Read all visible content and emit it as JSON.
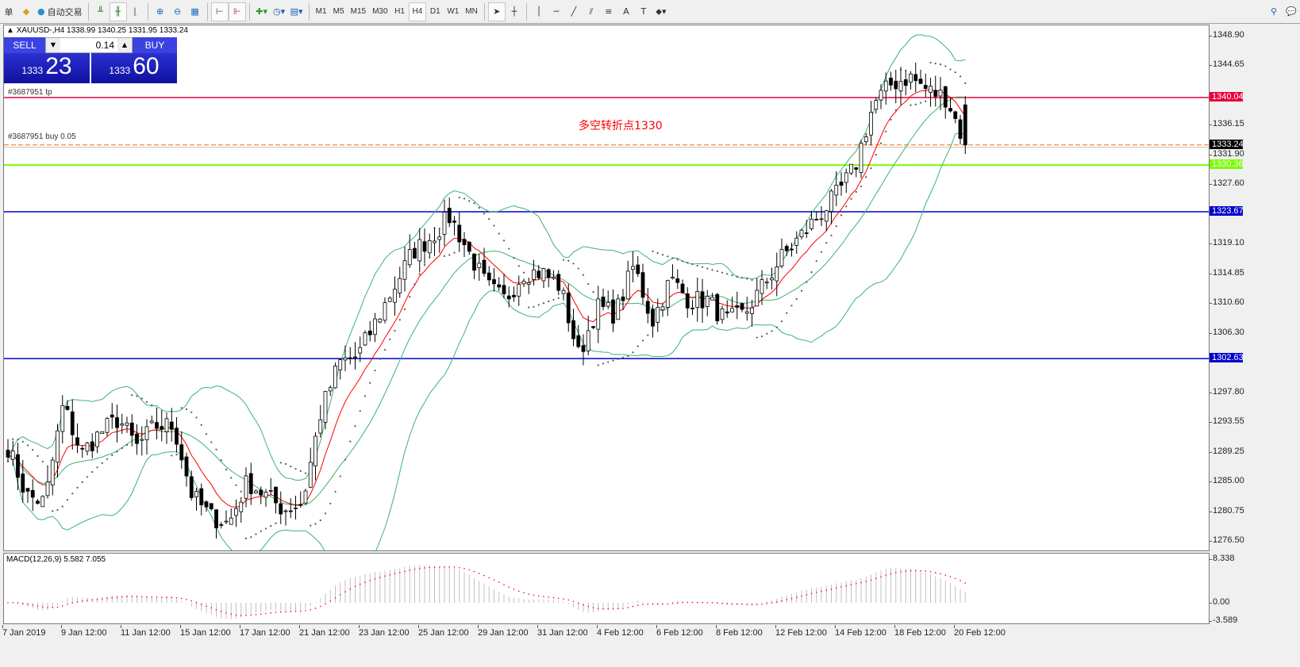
{
  "toolbar": {
    "left_partial": "单",
    "autotrade_label": "自动交易",
    "icons": [
      "expert-icon",
      "autotrade-icon",
      "bar-chart-icon",
      "candlestick-icon",
      "line-chart-icon",
      "zoom-in-icon",
      "zoom-out-icon",
      "tile-windows-icon",
      "chart-shift-icon",
      "autoscroll-icon",
      "indicators-icon",
      "periods-icon",
      "templates-icon",
      "cursor-icon",
      "crosshair-icon",
      "vertical-line-icon",
      "horizontal-line-icon",
      "trendline-icon",
      "equidistant-channel-icon",
      "fibonacci-icon",
      "text-icon",
      "text-label-icon",
      "arrows-icon",
      "search-icon",
      "chat-icon"
    ],
    "timeframes": [
      "M1",
      "M5",
      "M15",
      "M30",
      "H1",
      "H4",
      "D1",
      "W1",
      "MN"
    ],
    "active_timeframe": "H4"
  },
  "chart": {
    "header": "XAUUSD-,H4  1338.99 1340.25 1331.95 1333.24",
    "annotation": "多空转折点1330",
    "annotation_color": "#ff0000",
    "order_tp_label": "#3687951 tp",
    "order_buy_label": "#3687951 buy 0.05",
    "trade_panel": {
      "sell": "SELL",
      "buy": "BUY",
      "lot": "0.14",
      "sell_big": "1333",
      "sell_small": "23",
      "buy_big": "1333",
      "buy_small": "60"
    }
  },
  "price_axis": [
    "1348.90",
    "1344.65",
    "1336.15",
    "1331.90",
    "1327.60",
    "1319.10",
    "1314.85",
    "1310.60",
    "1306.30",
    "1297.80",
    "1293.55",
    "1289.25",
    "1285.00",
    "1280.75",
    "1276.50"
  ],
  "levels": [
    {
      "price": 1340.04,
      "label": "1340.04",
      "color": "#e8003c",
      "text_color": "#ffffff"
    },
    {
      "price": 1333.24,
      "label": "1333.24",
      "color": "#000000",
      "text_color": "#ffffff"
    },
    {
      "price": 1330.36,
      "label": "1330.36",
      "color": "#7cfc00",
      "text_color": "#ffffff"
    },
    {
      "price": 1323.67,
      "label": "1323.67",
      "color": "#0000cc",
      "text_color": "#ffffff"
    },
    {
      "price": 1302.63,
      "label": "1302.63",
      "color": "#0000cc",
      "text_color": "#ffffff"
    }
  ],
  "macd": {
    "label": "MACD(12,26,9) 5.582 7.055",
    "axis": [
      "8.338",
      "0.00",
      "-3.589"
    ]
  },
  "time_axis": [
    "7 Jan 2019",
    "9 Jan 12:00",
    "11 Jan 12:00",
    "15 Jan 12:00",
    "17 Jan 12:00",
    "21 Jan 12:00",
    "23 Jan 12:00",
    "25 Jan 12:00",
    "29 Jan 12:00",
    "31 Jan 12:00",
    "4 Feb 12:00",
    "6 Feb 12:00",
    "8 Feb 12:00",
    "12 Feb 12:00",
    "14 Feb 12:00",
    "18 Feb 12:00",
    "20 Feb 12:00"
  ],
  "chart_data": {
    "type": "candlestick",
    "symbol": "XAUUSD-",
    "timeframe": "H4",
    "ylim": [
      1276.5,
      1348.9
    ],
    "last": {
      "open": 1338.99,
      "high": 1340.25,
      "low": 1331.95,
      "close": 1333.24
    },
    "approx_close_path": [
      [
        "7 Jan 2019",
        1290
      ],
      [
        "8 Jan",
        1283
      ],
      [
        "9 Jan",
        1282
      ],
      [
        "9 Jan 12:00",
        1296
      ],
      [
        "10 Jan",
        1289
      ],
      [
        "11 Jan",
        1292
      ],
      [
        "14 Jan",
        1294
      ],
      [
        "15 Jan 12:00",
        1290
      ],
      [
        "16 Jan",
        1293
      ],
      [
        "17 Jan 12:00",
        1293
      ],
      [
        "18 Jan",
        1283
      ],
      [
        "21 Jan",
        1280
      ],
      [
        "21 Jan 12:00",
        1279
      ],
      [
        "22 Jan",
        1285
      ],
      [
        "23 Jan",
        1283
      ],
      [
        "23 Jan 12:00",
        1281
      ],
      [
        "24 Jan",
        1282
      ],
      [
        "25 Jan",
        1295
      ],
      [
        "25 Jan 12:00",
        1302
      ],
      [
        "28 Jan",
        1303
      ],
      [
        "29 Jan",
        1308
      ],
      [
        "29 Jan 12:00",
        1313
      ],
      [
        "30 Jan",
        1318
      ],
      [
        "30 Jan 12:00",
        1320
      ],
      [
        "31 Jan",
        1323
      ],
      [
        "1 Feb",
        1318
      ],
      [
        "4 Feb",
        1313
      ],
      [
        "4 Feb 12:00",
        1311
      ],
      [
        "5 Feb",
        1315
      ],
      [
        "6 Feb",
        1315
      ],
      [
        "6 Feb 12:00",
        1313
      ],
      [
        "7 Feb",
        1303
      ],
      [
        "7 Feb 12:00",
        1310
      ],
      [
        "8 Feb",
        1309
      ],
      [
        "8 Feb 12:00",
        1316
      ],
      [
        "11 Feb",
        1308
      ],
      [
        "12 Feb",
        1314
      ],
      [
        "12 Feb 12:00",
        1311
      ],
      [
        "13 Feb",
        1311
      ],
      [
        "13 Feb 12:00",
        1308
      ],
      [
        "14 Feb",
        1309
      ],
      [
        "14 Feb 12:00",
        1313
      ],
      [
        "15 Feb",
        1317
      ],
      [
        "15 Feb 12:00",
        1320
      ],
      [
        "18 Feb",
        1323
      ],
      [
        "18 Feb 12:00",
        1326
      ],
      [
        "19 Feb",
        1330
      ],
      [
        "19 Feb 12:00",
        1339
      ],
      [
        "20 Feb",
        1342
      ],
      [
        "20 Feb 8:00",
        1343
      ],
      [
        "20 Feb 12:00",
        1341
      ],
      [
        "21 Feb",
        1340
      ],
      [
        "21 Feb 4:00",
        1333.24
      ]
    ],
    "indicators": [
      "Bollinger Bands(20)",
      "Moving Average",
      "Parabolic SAR",
      "MACD(12,26,9)"
    ],
    "colors": {
      "bollinger": "#3cb371",
      "ma": "#ff0000",
      "sar": "#555555",
      "macd_hist": "#c0c0c0",
      "macd_signal": "#ff0000"
    }
  }
}
